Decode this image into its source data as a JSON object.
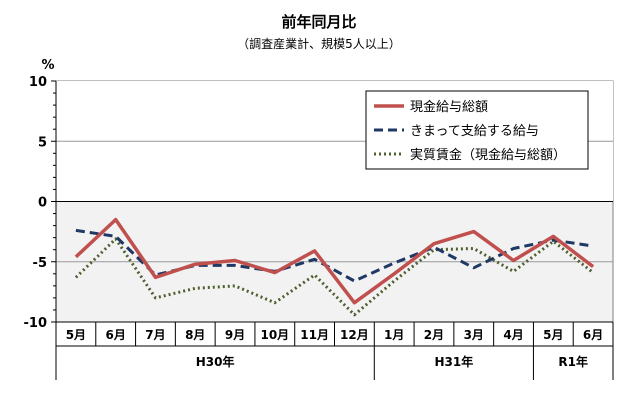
{
  "chart_data": {
    "type": "line",
    "title": "前年同月比",
    "subtitle": "（調査産業計、規模5人以上）",
    "ylabel": "%",
    "ylim": [
      -10,
      10
    ],
    "yticks": [
      10,
      5,
      0,
      -5,
      -10
    ],
    "categories": [
      "5月",
      "6月",
      "7月",
      "8月",
      "9月",
      "10月",
      "11月",
      "12月",
      "1月",
      "2月",
      "3月",
      "4月",
      "5月",
      "6月"
    ],
    "year_groups": [
      {
        "label": "H30年",
        "count": 8
      },
      {
        "label": "H31年",
        "count": 4
      },
      {
        "label": "R1年",
        "count": 2
      }
    ],
    "grid": true,
    "legend_position": "top-right",
    "series": [
      {
        "name": "現金給与総額",
        "color": "#c0504d",
        "style": "solid",
        "values": [
          -4.6,
          -1.5,
          -6.3,
          -5.2,
          -4.9,
          -5.9,
          -4.1,
          -8.4,
          -6.0,
          -3.5,
          -2.5,
          -4.9,
          -2.9,
          -5.4
        ]
      },
      {
        "name": "きまって支給する給与",
        "color": "#1f3864",
        "style": "dashed",
        "values": [
          -2.4,
          -2.9,
          -6.1,
          -5.3,
          -5.3,
          -5.8,
          -4.8,
          -6.6,
          -5.1,
          -3.8,
          -5.5,
          -3.9,
          -3.2,
          -3.7
        ]
      },
      {
        "name": "実質賃金（現金給与総額）",
        "color": "#4f5f2f",
        "style": "dotted",
        "values": [
          -6.3,
          -3.1,
          -8.0,
          -7.2,
          -7.0,
          -8.4,
          -6.1,
          -9.4,
          -6.6,
          -4.0,
          -3.9,
          -5.8,
          -3.3,
          -5.9
        ]
      }
    ]
  }
}
